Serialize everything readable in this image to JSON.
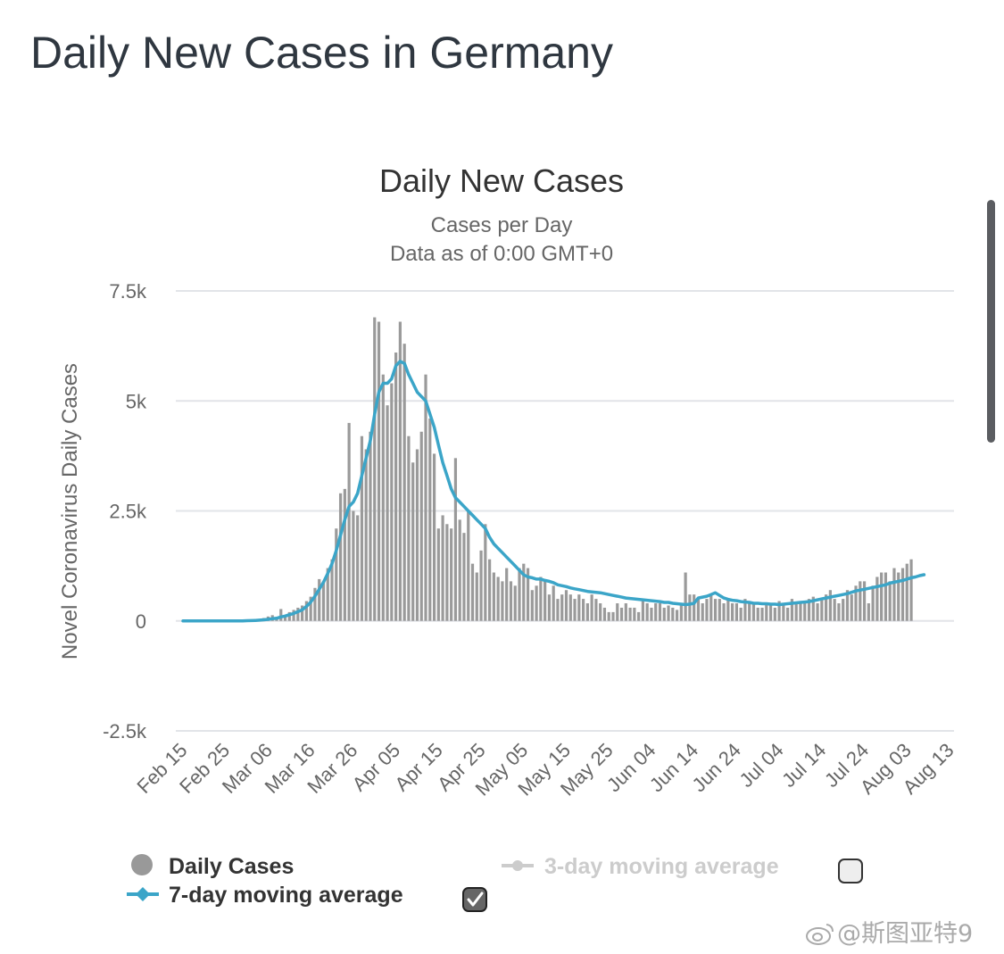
{
  "page_title": "Daily New Cases in Germany",
  "watermark": "@斯图亚特9",
  "colors": {
    "bars": "#9a9a9a",
    "ma7": "#3ba5c8",
    "ma3_disabled": "#cccccc",
    "grid": "#e2e4e8",
    "text": "#333333",
    "subtext": "#666666"
  },
  "chart_data": {
    "type": "bar",
    "title": "Daily New Cases",
    "subtitle": "Cases per Day",
    "subtitle2": "Data as of 0:00 GMT+0",
    "ylabel": "Novel Coronavirus Daily Cases",
    "xlabel": "",
    "ylim": [
      -2500,
      7500
    ],
    "yticks": [
      -2500,
      0,
      2500,
      5000,
      7500
    ],
    "ytick_labels": [
      "-2.5k",
      "0",
      "2.5k",
      "5k",
      "7.5k"
    ],
    "x_start": "Feb 15",
    "xtick_labels": [
      "Feb 15",
      "Feb 25",
      "Mar 06",
      "Mar 16",
      "Mar 26",
      "Apr 05",
      "Apr 15",
      "Apr 25",
      "May 05",
      "May 15",
      "May 25",
      "Jun 04",
      "Jun 14",
      "Jun 24",
      "Jul 04",
      "Jul 14",
      "Jul 24",
      "Aug 03",
      "Aug 13"
    ],
    "grid": true,
    "legend_position": "bottom",
    "series": [
      {
        "name": "Daily Cases",
        "type": "bar",
        "values": [
          0,
          0,
          0,
          0,
          0,
          0,
          0,
          0,
          0,
          0,
          0,
          0,
          0,
          0,
          0,
          10,
          20,
          30,
          40,
          66,
          100,
          130,
          50,
          270,
          100,
          200,
          250,
          300,
          350,
          450,
          550,
          750,
          950,
          900,
          1200,
          1400,
          2100,
          2900,
          3000,
          4500,
          2500,
          2400,
          4200,
          3900,
          4300,
          6900,
          6800,
          5600,
          4900,
          5400,
          6100,
          6800,
          6300,
          4200,
          3600,
          3900,
          4300,
          5600,
          4600,
          3800,
          2100,
          2400,
          2200,
          2100,
          3700,
          2300,
          2000,
          2500,
          1300,
          1100,
          1600,
          2200,
          1400,
          1100,
          1000,
          900,
          1200,
          900,
          800,
          1200,
          1300,
          1200,
          700,
          800,
          1000,
          900,
          600,
          800,
          500,
          600,
          700,
          600,
          500,
          600,
          500,
          400,
          600,
          500,
          400,
          300,
          200,
          200,
          400,
          300,
          400,
          300,
          300,
          200,
          500,
          400,
          300,
          400,
          400,
          300,
          350,
          300,
          250,
          350,
          1100,
          600,
          600,
          500,
          400,
          500,
          600,
          500,
          500,
          400,
          500,
          400,
          400,
          300,
          500,
          400,
          400,
          300,
          300,
          400,
          350,
          300,
          450,
          350,
          300,
          500,
          400,
          450,
          450,
          500,
          550,
          400,
          500,
          600,
          700,
          500,
          400,
          500,
          700,
          600,
          800,
          900,
          900,
          400,
          800,
          1000,
          1100,
          1100,
          900,
          1200,
          1100,
          1200,
          1300,
          1400
        ],
        "x_offset_days": 0
      },
      {
        "name": "7-day moving average",
        "type": "line",
        "enabled": true,
        "values": [
          0,
          0,
          0,
          0,
          0,
          0,
          0,
          0,
          0,
          0,
          0,
          0,
          0,
          0,
          0,
          5,
          8,
          12,
          17,
          25,
          35,
          50,
          60,
          90,
          110,
          140,
          170,
          210,
          250,
          330,
          430,
          560,
          720,
          880,
          1080,
          1300,
          1600,
          1950,
          2300,
          2600,
          2700,
          2900,
          3300,
          3700,
          4100,
          4700,
          5200,
          5400,
          5400,
          5500,
          5800,
          5900,
          5850,
          5600,
          5400,
          5200,
          5100,
          5000,
          4700,
          4400,
          4000,
          3600,
          3300,
          3000,
          2800,
          2700,
          2600,
          2500,
          2400,
          2300,
          2200,
          2100,
          1900,
          1750,
          1650,
          1550,
          1450,
          1350,
          1250,
          1150,
          1050,
          1000,
          980,
          950,
          950,
          920,
          900,
          870,
          820,
          800,
          780,
          750,
          730,
          710,
          690,
          670,
          660,
          650,
          640,
          620,
          600,
          580,
          560,
          540,
          520,
          510,
          500,
          490,
          480,
          470,
          460,
          450,
          440,
          420,
          420,
          400,
          390,
          380,
          370,
          380,
          400,
          520,
          540,
          560,
          600,
          640,
          580,
          520,
          490,
          470,
          460,
          440,
          430,
          420,
          400,
          400,
          390,
          390,
          380,
          380,
          370,
          380,
          390,
          400,
          410,
          420,
          430,
          440,
          460,
          480,
          500,
          520,
          540,
          560,
          580,
          600,
          620,
          650,
          680,
          700,
          720,
          740,
          760,
          780,
          800,
          820,
          860,
          880,
          900,
          920,
          950,
          980,
          1000,
          1030,
          1050
        ],
        "x_offset_days": 0
      },
      {
        "name": "3-day moving average",
        "type": "line",
        "enabled": false,
        "values": []
      }
    ]
  },
  "legend": {
    "daily_cases_label": "Daily Cases",
    "ma3_label": "3-day moving average",
    "ma7_label": "7-day moving average",
    "ma7_checked": true,
    "ma3_checked": false
  }
}
